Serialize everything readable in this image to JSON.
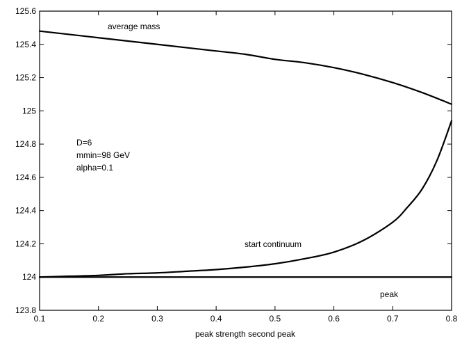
{
  "chart_data": {
    "type": "line",
    "title": "",
    "xlabel": "peak strength second peak",
    "ylabel": "",
    "xlim": [
      0.1,
      0.8
    ],
    "ylim": [
      123.8,
      125.6
    ],
    "grid": false,
    "xticks": [
      0.1,
      0.2,
      0.3,
      0.4,
      0.5,
      0.6,
      0.7,
      0.8
    ],
    "xtick_labels": [
      "0.1",
      "0.2",
      "0.3",
      "0.4",
      "0.5",
      "0.6",
      "0.7",
      "0.8"
    ],
    "yticks": [
      123.8,
      124.0,
      124.2,
      124.4,
      124.6,
      124.8,
      125.0,
      125.2,
      125.4,
      125.6
    ],
    "ytick_labels": [
      "123.8",
      "124",
      "124.2",
      "124.4",
      "124.6",
      "124.8",
      "125",
      "125.2",
      "125.4",
      "125.6"
    ],
    "series": [
      {
        "name": "average mass",
        "x": [
          0.1,
          0.15,
          0.2,
          0.25,
          0.3,
          0.35,
          0.4,
          0.45,
          0.5,
          0.55,
          0.6,
          0.65,
          0.7,
          0.75,
          0.8
        ],
        "y": [
          125.48,
          125.46,
          125.44,
          125.42,
          125.4,
          125.38,
          125.36,
          125.34,
          125.31,
          125.29,
          125.26,
          125.22,
          125.17,
          125.11,
          125.04
        ]
      },
      {
        "name": "start continuum",
        "x": [
          0.1,
          0.15,
          0.2,
          0.25,
          0.3,
          0.35,
          0.4,
          0.45,
          0.5,
          0.55,
          0.6,
          0.65,
          0.7,
          0.725,
          0.75,
          0.775,
          0.8
        ],
        "y": [
          124.0,
          124.005,
          124.01,
          124.02,
          124.025,
          124.035,
          124.045,
          124.06,
          124.08,
          124.11,
          124.15,
          124.22,
          124.33,
          124.42,
          124.53,
          124.7,
          124.94
        ]
      },
      {
        "name": "peak",
        "x": [
          0.1,
          0.8
        ],
        "y": [
          124.0,
          124.0
        ]
      }
    ],
    "annotations": {
      "average_mass": "average mass",
      "start_continuum": "start continuum",
      "peak": "peak",
      "params": [
        "D=6",
        "mmin=98 GeV",
        "alpha=0.1"
      ]
    }
  }
}
